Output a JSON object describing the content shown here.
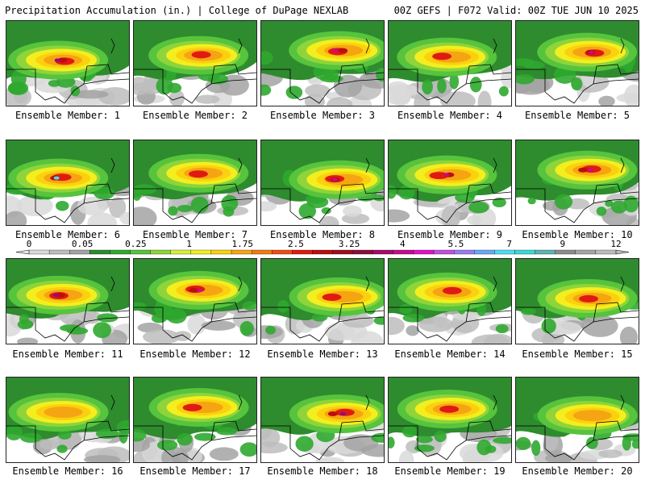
{
  "header": {
    "title_left": "Precipitation Accumulation (in.) | College of DuPage NEXLAB",
    "title_right": "00Z GEFS | F072 Valid: 00Z TUE JUN 10 2025"
  },
  "colorbar": {
    "tick_labels": [
      "0",
      "0.05",
      "0.25",
      "1",
      "1.75",
      "2.5",
      "3.25",
      "4",
      "5.5",
      "7",
      "9",
      "12"
    ],
    "colors": [
      "#d9d9d9",
      "#bdbdbd",
      "#a3a3a3",
      "#2e8b2e",
      "#2fa82f",
      "#56c43c",
      "#8fd43a",
      "#d9ee3a",
      "#f3ef1e",
      "#fbd10f",
      "#f6a512",
      "#f27b10",
      "#ee4e12",
      "#e01a12",
      "#bd0d0d",
      "#a00c1f",
      "#8a0c3c",
      "#a50a6a",
      "#c70a8f",
      "#e112c3",
      "#c24fe0",
      "#9a7df0",
      "#6aa8f5",
      "#4fdcf4",
      "#3bd9d3",
      "#5cb4b4",
      "#8c8c8c",
      "#a5a5a5",
      "#bcbcbc"
    ]
  },
  "palette": {
    "gray_light": "#d9d9d9",
    "gray_mid": "#bdbdbd",
    "gray_dark": "#a3a3a3",
    "green_dark": "#2e8b2e",
    "green": "#2fa82f",
    "green_light": "#56c43c",
    "lime": "#8fd43a",
    "yellow": "#f3ef1e",
    "gold": "#fbd10f",
    "orange": "#f6a512",
    "red": "#e01a12",
    "darkred": "#bd0d0d",
    "magenta": "#c70a8f",
    "purple": "#8a0c8c",
    "cyan": "#4fdcf4"
  },
  "members": [
    {
      "label": "Ensemble Member: 1",
      "core": "red",
      "peak": "purple"
    },
    {
      "label": "Ensemble Member: 2",
      "core": "red",
      "peak": ""
    },
    {
      "label": "Ensemble Member: 3",
      "core": "red",
      "peak": "magenta"
    },
    {
      "label": "Ensemble Member: 4",
      "core": "red",
      "peak": ""
    },
    {
      "label": "Ensemble Member: 5",
      "core": "red",
      "peak": "magenta"
    },
    {
      "label": "Ensemble Member: 6",
      "core": "red",
      "peak": "cyan"
    },
    {
      "label": "Ensemble Member: 7",
      "core": "red",
      "peak": ""
    },
    {
      "label": "Ensemble Member: 8",
      "core": "red",
      "peak": "magenta"
    },
    {
      "label": "Ensemble Member: 9",
      "core": "red",
      "peak": "magenta"
    },
    {
      "label": "Ensemble Member: 10",
      "core": "red",
      "peak": "magenta"
    },
    {
      "label": "Ensemble Member: 11",
      "core": "red",
      "peak": "purple"
    },
    {
      "label": "Ensemble Member: 12",
      "core": "red",
      "peak": "magenta"
    },
    {
      "label": "Ensemble Member: 13",
      "core": "red",
      "peak": ""
    },
    {
      "label": "Ensemble Member: 14",
      "core": "red",
      "peak": ""
    },
    {
      "label": "Ensemble Member: 15",
      "core": "red",
      "peak": ""
    },
    {
      "label": "Ensemble Member: 16",
      "core": "orange",
      "peak": ""
    },
    {
      "label": "Ensemble Member: 17",
      "core": "red",
      "peak": ""
    },
    {
      "label": "Ensemble Member: 18",
      "core": "red",
      "peak": "purple"
    },
    {
      "label": "Ensemble Member: 19",
      "core": "red",
      "peak": ""
    },
    {
      "label": "Ensemble Member: 20",
      "core": "orange",
      "peak": ""
    }
  ]
}
